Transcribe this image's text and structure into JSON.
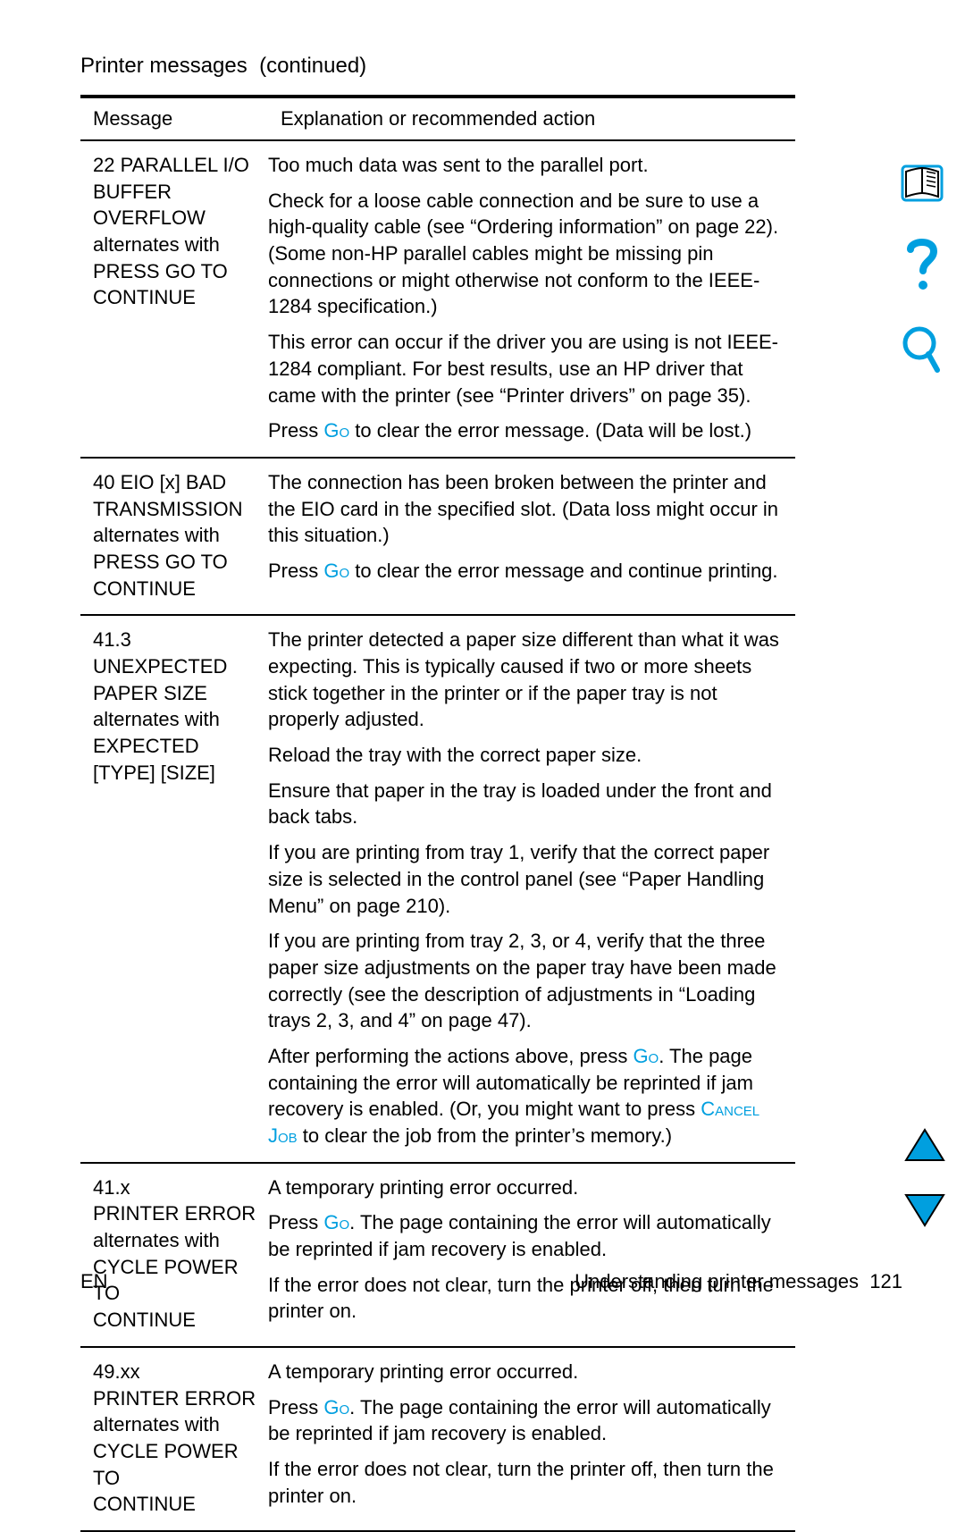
{
  "title_prefix": "Printer messages",
  "title_suffix": "(continued)",
  "header": {
    "c1": "Message",
    "c2": "Explanation or recommended action"
  },
  "rows": [
    {
      "msg_lines": [
        "22 PARALLEL I/O",
        "BUFFER OVERFLOW",
        "alternates with",
        "PRESS GO TO",
        "CONTINUE"
      ],
      "exp_parts": [
        {
          "t": "plain",
          "v": "Too much data was sent to the parallel port."
        },
        {
          "t": "plain",
          "v": "Check for a loose cable connection and be sure to use a high-quality cable (see “Ordering information” on page 22). (Some non-HP parallel cables might be missing pin connections or might otherwise not conform to the IEEE-1284 specification.)"
        },
        {
          "t": "plain",
          "v": "This error can occur if the driver you are using is not IEEE-1284 compliant. For best results, use an HP driver that came with the printer (see “Printer drivers” on page 35)."
        },
        {
          "t": "go_mid",
          "pre": "Press ",
          "go": "Go",
          "post": " to clear the error message. (Data will be lost.)"
        }
      ]
    },
    {
      "msg_lines": [
        "40 EIO [x] BAD",
        "TRANSMISSION",
        "alternates with",
        "PRESS GO TO",
        "CONTINUE"
      ],
      "exp_parts": [
        {
          "t": "plain",
          "v": "The connection has been broken between the printer and the EIO card in the specified slot. (Data loss might occur in this situation.)"
        },
        {
          "t": "go_mid",
          "pre": "Press ",
          "go": "Go",
          "post": " to clear the error message and continue printing."
        }
      ]
    },
    {
      "msg_lines": [
        "41.3 UNEXPECTED",
        "PAPER SIZE",
        "alternates with",
        "EXPECTED",
        "[TYPE] [SIZE]"
      ],
      "exp_parts": [
        {
          "t": "plain",
          "v": "The printer detected a paper size different than what it was expecting. This is typically caused if two or more sheets stick together in the printer or if the paper tray is not properly adjusted."
        },
        {
          "t": "plain",
          "v": "Reload the tray with the correct paper size."
        },
        {
          "t": "plain",
          "v": "Ensure that paper in the tray is loaded under the front and back tabs."
        },
        {
          "t": "plain",
          "v": "If you are printing from tray 1, verify that the correct paper size is selected in the control panel (see “Paper Handling Menu” on page 210)."
        },
        {
          "t": "plain",
          "v": "If you are printing from tray 2, 3, or 4, verify that the three paper size adjustments on the paper tray have been made correctly (see the description of adjustments in “Loading trays 2, 3, and 4” on page 47)."
        },
        {
          "t": "go_cj",
          "pre": "After performing the actions above, press ",
          "go": "Go",
          "mid": ". The page containing the error will automatically be reprinted if jam recovery is enabled. (Or, you might want to press ",
          "cj": "Cancel Job",
          "post": " to clear the job from the printer’s memory.)"
        }
      ]
    },
    {
      "msg_lines": [
        "41.x",
        "PRINTER ERROR",
        "alternates with",
        "CYCLE POWER TO",
        "CONTINUE"
      ],
      "exp_parts": [
        {
          "t": "plain",
          "v": "A temporary printing error occurred."
        },
        {
          "t": "go_mid",
          "pre": "Press ",
          "go": "Go",
          "post": ". The page containing the error will automatically be reprinted if jam recovery is enabled."
        },
        {
          "t": "plain",
          "v": "If the error does not clear, turn the printer off, then turn the printer on."
        }
      ]
    },
    {
      "msg_lines": [
        "49.xx",
        "PRINTER ERROR",
        "alternates with",
        "CYCLE POWER TO",
        "CONTINUE"
      ],
      "exp_parts": [
        {
          "t": "plain",
          "v": "A temporary printing error occurred."
        },
        {
          "t": "go_mid",
          "pre": "Press ",
          "go": "Go",
          "post": ". The page containing the error will automatically be reprinted if jam recovery is enabled."
        },
        {
          "t": "plain",
          "v": "If the error does not clear, turn the printer off, then turn the printer on."
        }
      ]
    }
  ],
  "footer": {
    "left": "EN",
    "right_text": "Understanding printer messages",
    "right_page": "121"
  },
  "colors": {
    "accent": "#009fdf",
    "icon_blue": "#009fdf",
    "icon_stroke": "#000000"
  }
}
